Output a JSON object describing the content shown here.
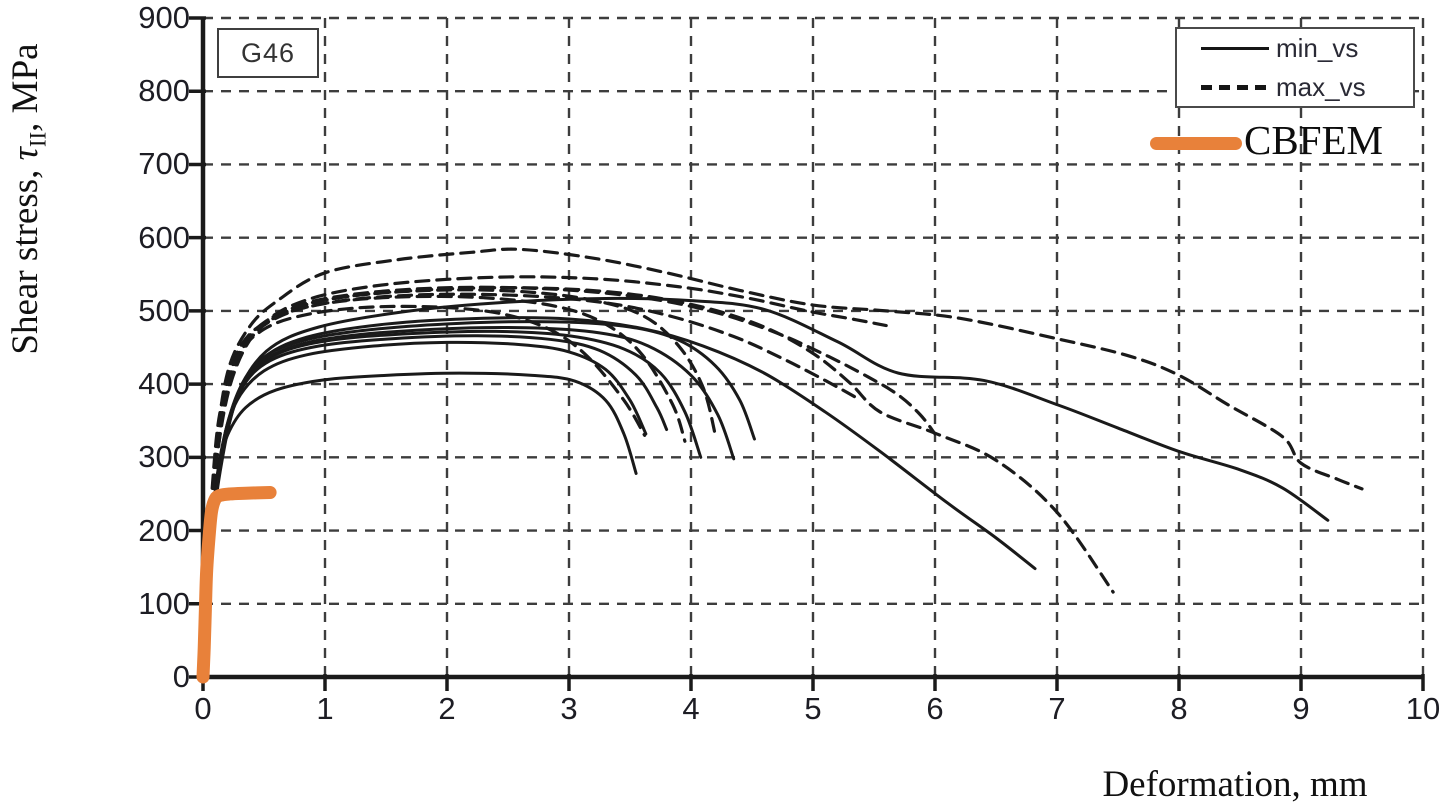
{
  "labels": {
    "annotation": "G46",
    "xlabel": "Deformation, mm",
    "ylabel_prefix": "Shear stress, ",
    "ylabel_tau": "τ",
    "ylabel_sub": "II",
    "ylabel_suffix": ", MPa"
  },
  "legend": {
    "items": [
      {
        "label": "min_vs",
        "style": "solid"
      },
      {
        "label": "max_vs",
        "style": "dashed"
      }
    ],
    "cbfem_label": "CBFEM",
    "cbfem_color": "#e8813a"
  },
  "chart_data": {
    "type": "line",
    "title": "",
    "annotation": "G46",
    "xlabel": "Deformation, mm",
    "ylabel": "Shear stress, τ_II, MPa",
    "xlim": [
      0,
      10
    ],
    "ylim": [
      0,
      900
    ],
    "x_ticks": [
      0,
      1,
      2,
      3,
      4,
      5,
      6,
      7,
      8,
      9,
      10
    ],
    "y_ticks": [
      0,
      100,
      200,
      300,
      400,
      500,
      600,
      700,
      800,
      900
    ],
    "grid": "dashed",
    "legend_position": "top-right",
    "axis_color": "#1a1a1a",
    "grid_color": "#3d3d3d",
    "series": [
      {
        "name": "min_vs",
        "style": "solid",
        "color": "#1a1a1a",
        "line_width": 3,
        "curves": [
          [
            [
              0,
              0
            ],
            [
              0.04,
              110
            ],
            [
              0.08,
              210
            ],
            [
              0.13,
              285
            ],
            [
              0.2,
              330
            ],
            [
              0.35,
              368
            ],
            [
              0.6,
              392
            ],
            [
              1.0,
              406
            ],
            [
              1.5,
              412
            ],
            [
              2.1,
              415
            ],
            [
              2.7,
              412
            ],
            [
              3.05,
              404
            ],
            [
              3.3,
              378
            ],
            [
              3.45,
              332
            ],
            [
              3.55,
              278
            ]
          ],
          [
            [
              0,
              0
            ],
            [
              0.05,
              130
            ],
            [
              0.09,
              235
            ],
            [
              0.16,
              315
            ],
            [
              0.28,
              378
            ],
            [
              0.5,
              418
            ],
            [
              0.85,
              440
            ],
            [
              1.4,
              452
            ],
            [
              2.0,
              457
            ],
            [
              2.6,
              454
            ],
            [
              3.0,
              444
            ],
            [
              3.3,
              420
            ],
            [
              3.5,
              378
            ],
            [
              3.63,
              332
            ]
          ],
          [
            [
              0,
              0
            ],
            [
              0.05,
              140
            ],
            [
              0.1,
              248
            ],
            [
              0.18,
              330
            ],
            [
              0.32,
              395
            ],
            [
              0.55,
              432
            ],
            [
              0.95,
              452
            ],
            [
              1.55,
              462
            ],
            [
              2.25,
              466
            ],
            [
              2.85,
              461
            ],
            [
              3.25,
              446
            ],
            [
              3.55,
              412
            ],
            [
              3.72,
              368
            ],
            [
              3.8,
              338
            ]
          ],
          [
            [
              0,
              0
            ],
            [
              0.05,
              148
            ],
            [
              0.1,
              255
            ],
            [
              0.2,
              345
            ],
            [
              0.36,
              408
            ],
            [
              0.62,
              442
            ],
            [
              1.05,
              460
            ],
            [
              1.7,
              469
            ],
            [
              2.4,
              472
            ],
            [
              3.0,
              466
            ],
            [
              3.45,
              448
            ],
            [
              3.75,
              415
            ],
            [
              3.95,
              362
            ],
            [
              4.08,
              300
            ]
          ],
          [
            [
              0,
              0
            ],
            [
              0.05,
              152
            ],
            [
              0.11,
              262
            ],
            [
              0.21,
              352
            ],
            [
              0.38,
              415
            ],
            [
              0.68,
              448
            ],
            [
              1.15,
              465
            ],
            [
              1.9,
              475
            ],
            [
              2.65,
              477
            ],
            [
              3.25,
              470
            ],
            [
              3.65,
              452
            ],
            [
              4.0,
              412
            ],
            [
              4.22,
              358
            ],
            [
              4.35,
              298
            ]
          ],
          [
            [
              0,
              0
            ],
            [
              0.06,
              158
            ],
            [
              0.12,
              270
            ],
            [
              0.23,
              362
            ],
            [
              0.42,
              425
            ],
            [
              0.75,
              456
            ],
            [
              1.3,
              473
            ],
            [
              2.1,
              483
            ],
            [
              2.9,
              485
            ],
            [
              3.5,
              478
            ],
            [
              3.9,
              460
            ],
            [
              4.2,
              425
            ],
            [
              4.4,
              378
            ],
            [
              4.52,
              325
            ]
          ],
          [
            [
              0,
              0
            ],
            [
              0.06,
              162
            ],
            [
              0.13,
              275
            ],
            [
              0.26,
              372
            ],
            [
              0.47,
              432
            ],
            [
              0.85,
              464
            ],
            [
              1.5,
              482
            ],
            [
              2.3,
              490
            ],
            [
              3.0,
              489
            ],
            [
              3.6,
              476
            ],
            [
              4.1,
              452
            ],
            [
              4.6,
              415
            ],
            [
              5.1,
              362
            ],
            [
              5.55,
              308
            ],
            [
              6.1,
              238
            ],
            [
              6.5,
              190
            ],
            [
              6.82,
              148
            ]
          ],
          [
            [
              0,
              0
            ],
            [
              0.06,
              166
            ],
            [
              0.14,
              280
            ],
            [
              0.28,
              382
            ],
            [
              0.52,
              445
            ],
            [
              0.95,
              478
            ],
            [
              1.7,
              500
            ],
            [
              2.5,
              512
            ],
            [
              3.3,
              517
            ],
            [
              4.0,
              514
            ],
            [
              4.6,
              502
            ],
            [
              5.2,
              458
            ],
            [
              5.7,
              415
            ],
            [
              6.4,
              405
            ],
            [
              7.0,
              372
            ],
            [
              7.5,
              340
            ],
            [
              8.0,
              308
            ],
            [
              8.5,
              283
            ],
            [
              8.85,
              258
            ],
            [
              9.22,
              214
            ]
          ]
        ]
      },
      {
        "name": "max_vs",
        "style": "dashed",
        "color": "#1a1a1a",
        "line_width": 3.2,
        "dash": "13 8",
        "curves": [
          [
            [
              0,
              0
            ],
            [
              0.04,
              150
            ],
            [
              0.08,
              268
            ],
            [
              0.14,
              362
            ],
            [
              0.27,
              435
            ],
            [
              0.5,
              475
            ],
            [
              0.85,
              495
            ],
            [
              1.35,
              505
            ],
            [
              1.95,
              505
            ],
            [
              2.45,
              496
            ],
            [
              2.85,
              474
            ],
            [
              3.15,
              438
            ],
            [
              3.45,
              378
            ],
            [
              3.62,
              330
            ]
          ],
          [
            [
              0,
              0
            ],
            [
              0.04,
              158
            ],
            [
              0.09,
              280
            ],
            [
              0.17,
              385
            ],
            [
              0.32,
              455
            ],
            [
              0.58,
              490
            ],
            [
              1.0,
              510
            ],
            [
              1.6,
              519
            ],
            [
              2.3,
              518
            ],
            [
              2.9,
              506
            ],
            [
              3.3,
              482
            ],
            [
              3.6,
              440
            ],
            [
              3.85,
              372
            ],
            [
              3.95,
              322
            ]
          ],
          [
            [
              0,
              0
            ],
            [
              0.05,
              165
            ],
            [
              0.1,
              288
            ],
            [
              0.2,
              398
            ],
            [
              0.38,
              465
            ],
            [
              0.68,
              500
            ],
            [
              1.15,
              519
            ],
            [
              1.85,
              528
            ],
            [
              2.55,
              527
            ],
            [
              3.15,
              516
            ],
            [
              3.6,
              494
            ],
            [
              3.9,
              452
            ],
            [
              4.1,
              395
            ],
            [
              4.2,
              330
            ]
          ],
          [
            [
              0,
              0
            ],
            [
              0.05,
              172
            ],
            [
              0.1,
              300
            ],
            [
              0.2,
              415
            ],
            [
              0.38,
              478
            ],
            [
              0.62,
              515
            ],
            [
              1.0,
              552
            ],
            [
              1.6,
              570
            ],
            [
              2.2,
              580
            ],
            [
              2.6,
              584
            ],
            [
              3.2,
              572
            ],
            [
              3.8,
              552
            ],
            [
              4.4,
              528
            ],
            [
              5.0,
              508
            ],
            [
              5.6,
              500
            ],
            [
              6.2,
              490
            ],
            [
              7.0,
              462
            ],
            [
              7.6,
              438
            ],
            [
              8.0,
              412
            ],
            [
              8.4,
              372
            ],
            [
              8.85,
              328
            ],
            [
              9.0,
              292
            ],
            [
              9.3,
              270
            ],
            [
              9.5,
              257
            ]
          ],
          [
            [
              0,
              0
            ],
            [
              0.05,
              162
            ],
            [
              0.1,
              285
            ],
            [
              0.2,
              392
            ],
            [
              0.39,
              462
            ],
            [
              0.7,
              500
            ],
            [
              1.2,
              520
            ],
            [
              2.0,
              530
            ],
            [
              2.8,
              531
            ],
            [
              3.5,
              523
            ],
            [
              4.1,
              505
            ],
            [
              4.6,
              478
            ],
            [
              5.0,
              442
            ],
            [
              5.3,
              402
            ],
            [
              5.55,
              362
            ],
            [
              6.0,
              333
            ],
            [
              6.5,
              296
            ],
            [
              7.0,
              225
            ],
            [
              7.46,
              116
            ]
          ],
          [
            [
              0,
              0
            ],
            [
              0.05,
              168
            ],
            [
              0.11,
              292
            ],
            [
              0.22,
              402
            ],
            [
              0.42,
              470
            ],
            [
              0.76,
              506
            ],
            [
              1.3,
              524
            ],
            [
              2.1,
              532
            ],
            [
              2.95,
              529
            ],
            [
              3.65,
              517
            ],
            [
              4.2,
              498
            ],
            [
              4.7,
              470
            ],
            [
              5.1,
              440
            ],
            [
              5.45,
              410
            ],
            [
              5.7,
              385
            ],
            [
              5.88,
              358
            ],
            [
              6.0,
              332
            ]
          ],
          [
            [
              0,
              0
            ],
            [
              0.05,
              160
            ],
            [
              0.1,
              280
            ],
            [
              0.19,
              388
            ],
            [
              0.36,
              458
            ],
            [
              0.65,
              494
            ],
            [
              1.1,
              513
            ],
            [
              1.8,
              522
            ],
            [
              2.6,
              521
            ],
            [
              3.3,
              511
            ],
            [
              3.85,
              492
            ],
            [
              4.35,
              465
            ],
            [
              4.75,
              435
            ],
            [
              5.1,
              405
            ],
            [
              5.35,
              382
            ]
          ],
          [
            [
              0,
              0
            ],
            [
              0.05,
              170
            ],
            [
              0.11,
              295
            ],
            [
              0.24,
              408
            ],
            [
              0.47,
              478
            ],
            [
              0.85,
              515
            ],
            [
              1.5,
              536
            ],
            [
              2.4,
              546
            ],
            [
              3.2,
              544
            ],
            [
              3.9,
              533
            ],
            [
              4.45,
              518
            ],
            [
              4.95,
              500
            ],
            [
              5.35,
              488
            ],
            [
              5.6,
              480
            ]
          ]
        ]
      },
      {
        "name": "CBFEM",
        "style": "solid",
        "color": "#e8813a",
        "line_width": 13,
        "curves": [
          [
            [
              0,
              0
            ],
            [
              0.01,
              40
            ],
            [
              0.02,
              95
            ],
            [
              0.03,
              145
            ],
            [
              0.05,
              192
            ],
            [
              0.07,
              226
            ],
            [
              0.1,
              243
            ],
            [
              0.14,
              248
            ],
            [
              0.22,
              250
            ],
            [
              0.35,
              251
            ],
            [
              0.55,
              252
            ]
          ]
        ]
      }
    ]
  }
}
